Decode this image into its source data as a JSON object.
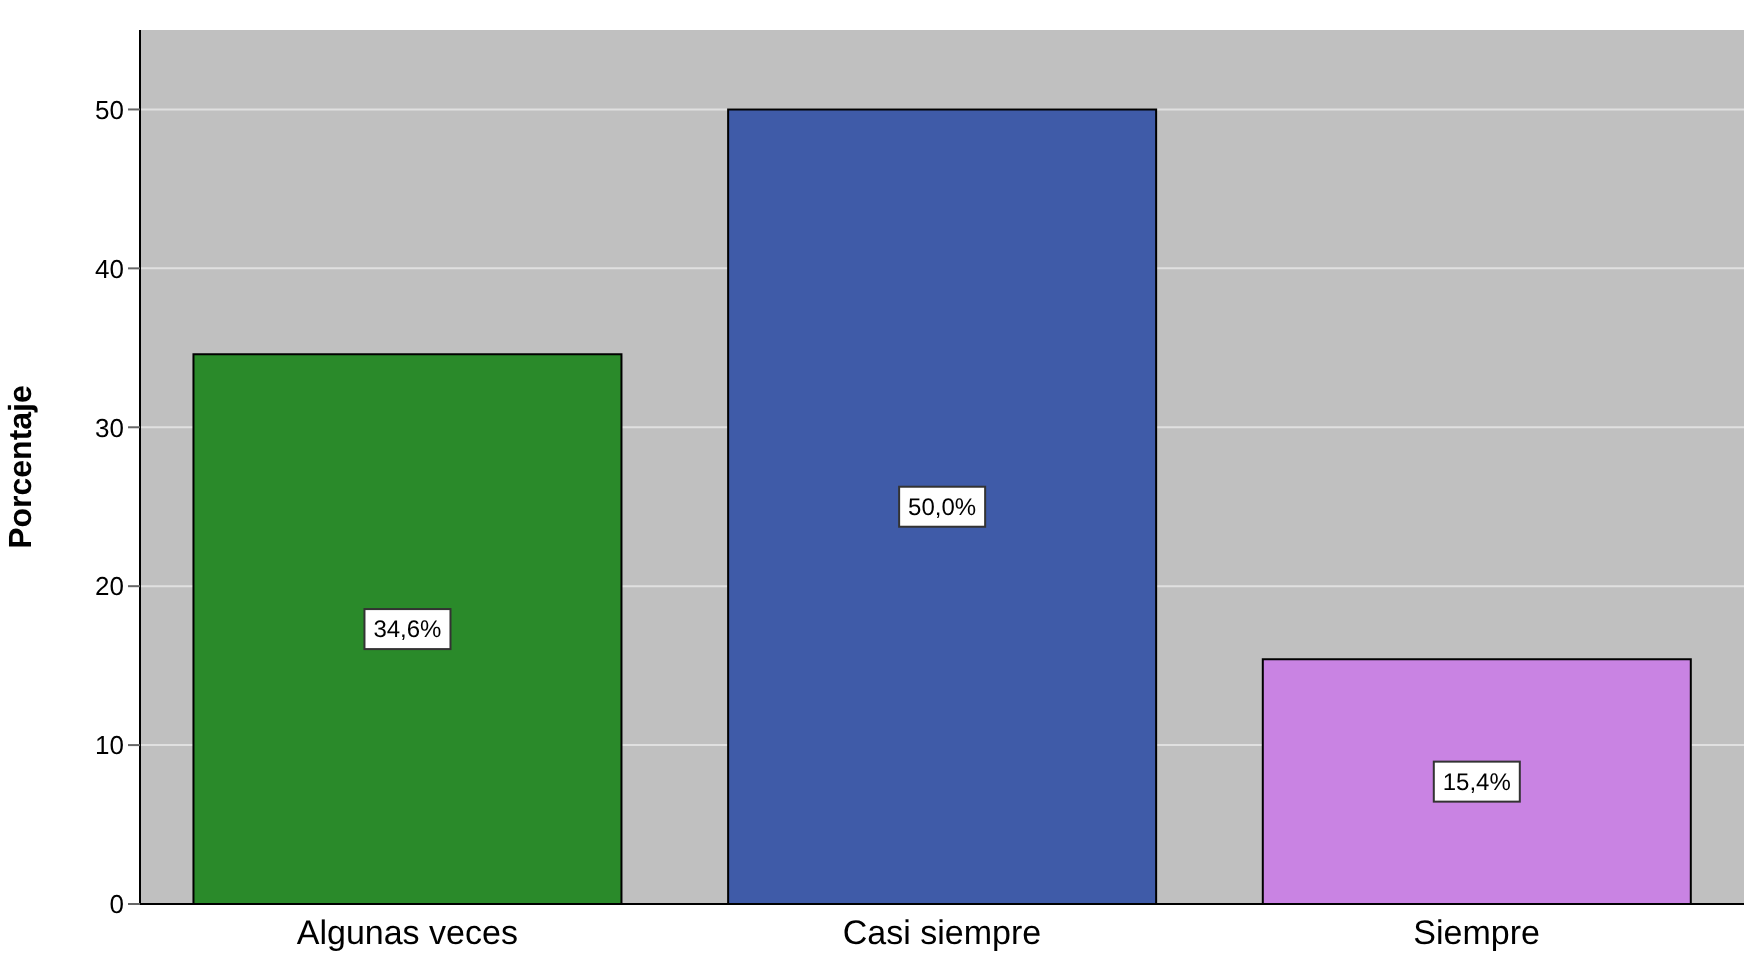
{
  "chart_data": {
    "type": "bar",
    "ylabel": "Porcentaje",
    "categories": [
      "Algunas veces",
      "Casi siempre",
      "Siempre"
    ],
    "values": [
      34.6,
      50.0,
      15.4
    ],
    "colors": [
      "#2a8a2a",
      "#3f5ba8",
      "#c983e3"
    ],
    "value_labels": [
      "34,6%",
      "50,0%",
      "15,4%"
    ],
    "ylim": [
      0,
      55
    ],
    "yticks": [
      0,
      10,
      20,
      30,
      40,
      50
    ],
    "grid": "y"
  }
}
